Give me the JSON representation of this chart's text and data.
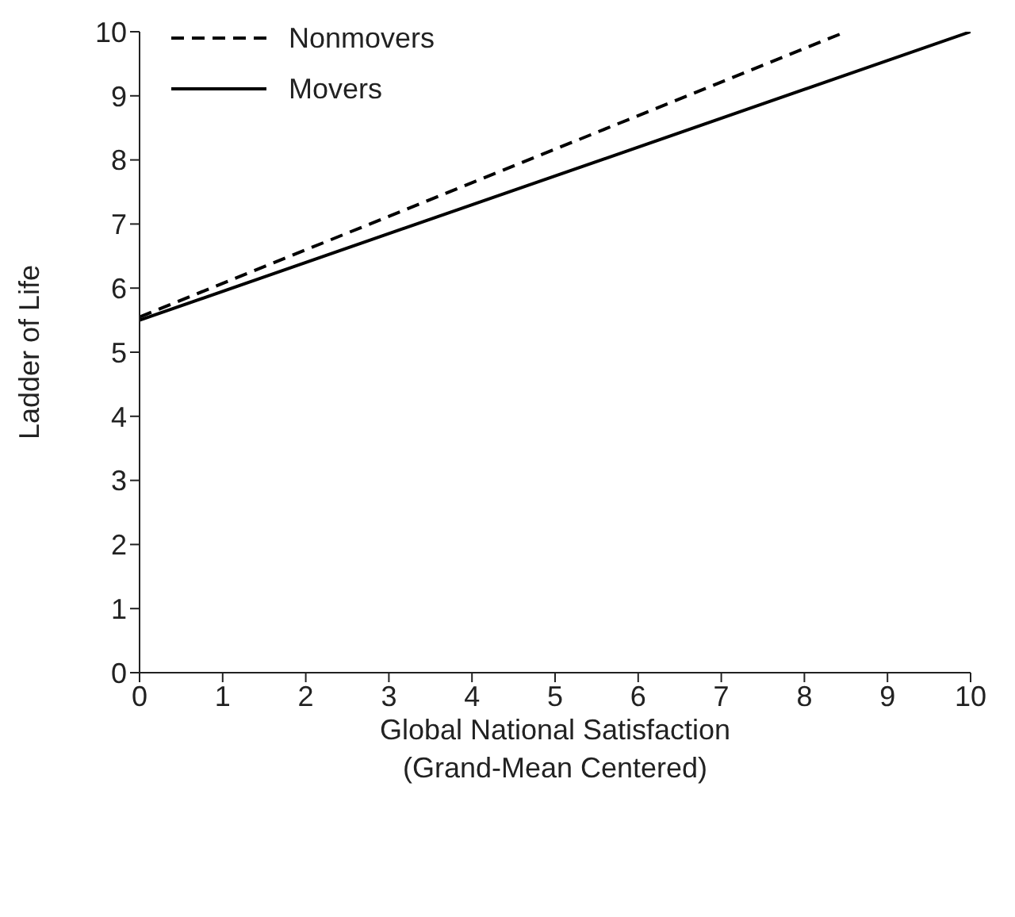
{
  "chart_data": {
    "type": "line",
    "xlabel": "Global National Satisfaction\n(Grand-Mean Centered)",
    "ylabel": "Ladder of Life",
    "series": [
      {
        "name": "Nonmovers",
        "color": "#000000",
        "x": [
          0,
          8.5
        ],
        "values": [
          5.55,
          10
        ],
        "line_style": "dashed"
      },
      {
        "name": "Movers",
        "color": "#000000",
        "x": [
          0,
          10
        ],
        "values": [
          5.5,
          10
        ],
        "line_style": "solid"
      }
    ],
    "xlim": [
      0,
      10
    ],
    "xticks": [
      0,
      1,
      2,
      3,
      4,
      5,
      6,
      7,
      8,
      9,
      10
    ],
    "ylim": [
      0,
      10
    ],
    "yticks": [
      0,
      1,
      2,
      3,
      4,
      5,
      6,
      7,
      8,
      9,
      10
    ],
    "grid": false,
    "legend": "top left",
    "marker": "none"
  }
}
